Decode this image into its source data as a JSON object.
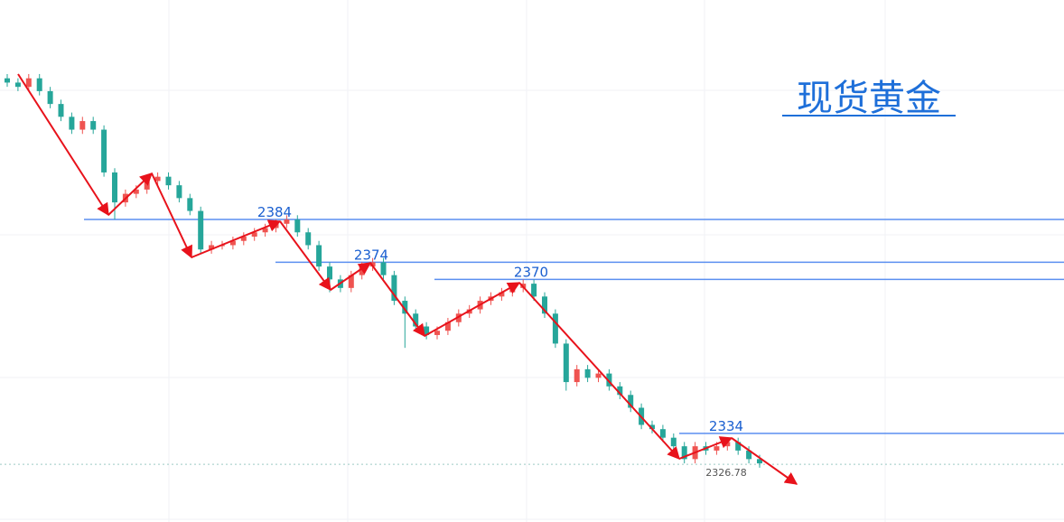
{
  "chart_data": {
    "type": "candlestick",
    "title": "现货黄金",
    "ylim": [
      2313.3,
      2435.3
    ],
    "up_color": "#ef5350",
    "down_color": "#26a69a",
    "level_color": "#5b8ff0",
    "open": [
      2417,
      2416,
      2415,
      2417,
      2414,
      2411,
      2408,
      2405,
      2407,
      2405,
      2395,
      2388,
      2390,
      2391,
      2393,
      2394,
      2392,
      2389,
      2386,
      2377,
      2378,
      2378,
      2379,
      2380,
      2381,
      2382,
      2383,
      2384,
      2381,
      2378,
      2373,
      2370,
      2368,
      2371,
      2373,
      2374,
      2371,
      2365,
      2362,
      2359,
      2357,
      2358,
      2360,
      2362,
      2363,
      2365,
      2366,
      2367,
      2368,
      2369,
      2366,
      2362,
      2355,
      2346,
      2349,
      2347,
      2348,
      2345,
      2343,
      2340,
      2336,
      2335,
      2333,
      2331,
      2328,
      2331,
      2330,
      2331,
      2332,
      2330,
      2328
    ],
    "high": [
      2418,
      2417,
      2418,
      2418,
      2415,
      2412,
      2409,
      2408,
      2408,
      2406,
      2396,
      2391,
      2392,
      2394,
      2395,
      2395,
      2393,
      2390,
      2387,
      2379,
      2379,
      2380,
      2381,
      2382,
      2383,
      2384,
      2385,
      2385,
      2382,
      2379,
      2374,
      2371,
      2372,
      2374,
      2375,
      2375,
      2372,
      2366,
      2363,
      2360,
      2359,
      2361,
      2363,
      2364,
      2366,
      2367,
      2368,
      2369,
      2370,
      2370,
      2367,
      2363,
      2356,
      2350,
      2350,
      2349,
      2349,
      2346,
      2344,
      2341,
      2337,
      2336,
      2334,
      2332,
      2332,
      2332,
      2332,
      2333,
      2333,
      2331,
      2329
    ],
    "low": [
      2415,
      2414,
      2414,
      2413,
      2410,
      2407,
      2404,
      2404,
      2404,
      2394,
      2384,
      2387,
      2389,
      2390,
      2392,
      2391,
      2388,
      2385,
      2376,
      2376,
      2377,
      2377,
      2378,
      2379,
      2380,
      2381,
      2382,
      2380,
      2377,
      2372,
      2367,
      2367,
      2367,
      2370,
      2372,
      2370,
      2364,
      2354,
      2358,
      2356,
      2356,
      2357,
      2359,
      2361,
      2362,
      2364,
      2365,
      2366,
      2367,
      2365,
      2361,
      2354,
      2344,
      2345,
      2346,
      2346,
      2344,
      2342,
      2339,
      2335,
      2334,
      2332,
      2330,
      2327,
      2327,
      2329,
      2329,
      2330,
      2329,
      2327,
      2326
    ],
    "close": [
      2416,
      2415,
      2417,
      2414,
      2411,
      2408,
      2405,
      2407,
      2405,
      2395,
      2388,
      2390,
      2391,
      2393,
      2394,
      2392,
      2389,
      2386,
      2377,
      2378,
      2378,
      2379,
      2380,
      2381,
      2382,
      2383,
      2384,
      2381,
      2378,
      2373,
      2370,
      2368,
      2371,
      2373,
      2374,
      2371,
      2365,
      2362,
      2359,
      2357,
      2358,
      2360,
      2362,
      2363,
      2365,
      2366,
      2367,
      2368,
      2369,
      2366,
      2362,
      2355,
      2346,
      2349,
      2347,
      2348,
      2345,
      2343,
      2340,
      2336,
      2335,
      2333,
      2331,
      2328,
      2331,
      2330,
      2331,
      2332,
      2330,
      2328,
      2327
    ],
    "levels": [
      2384,
      2374,
      2370,
      2334
    ],
    "last_price": 2326.78
  }
}
